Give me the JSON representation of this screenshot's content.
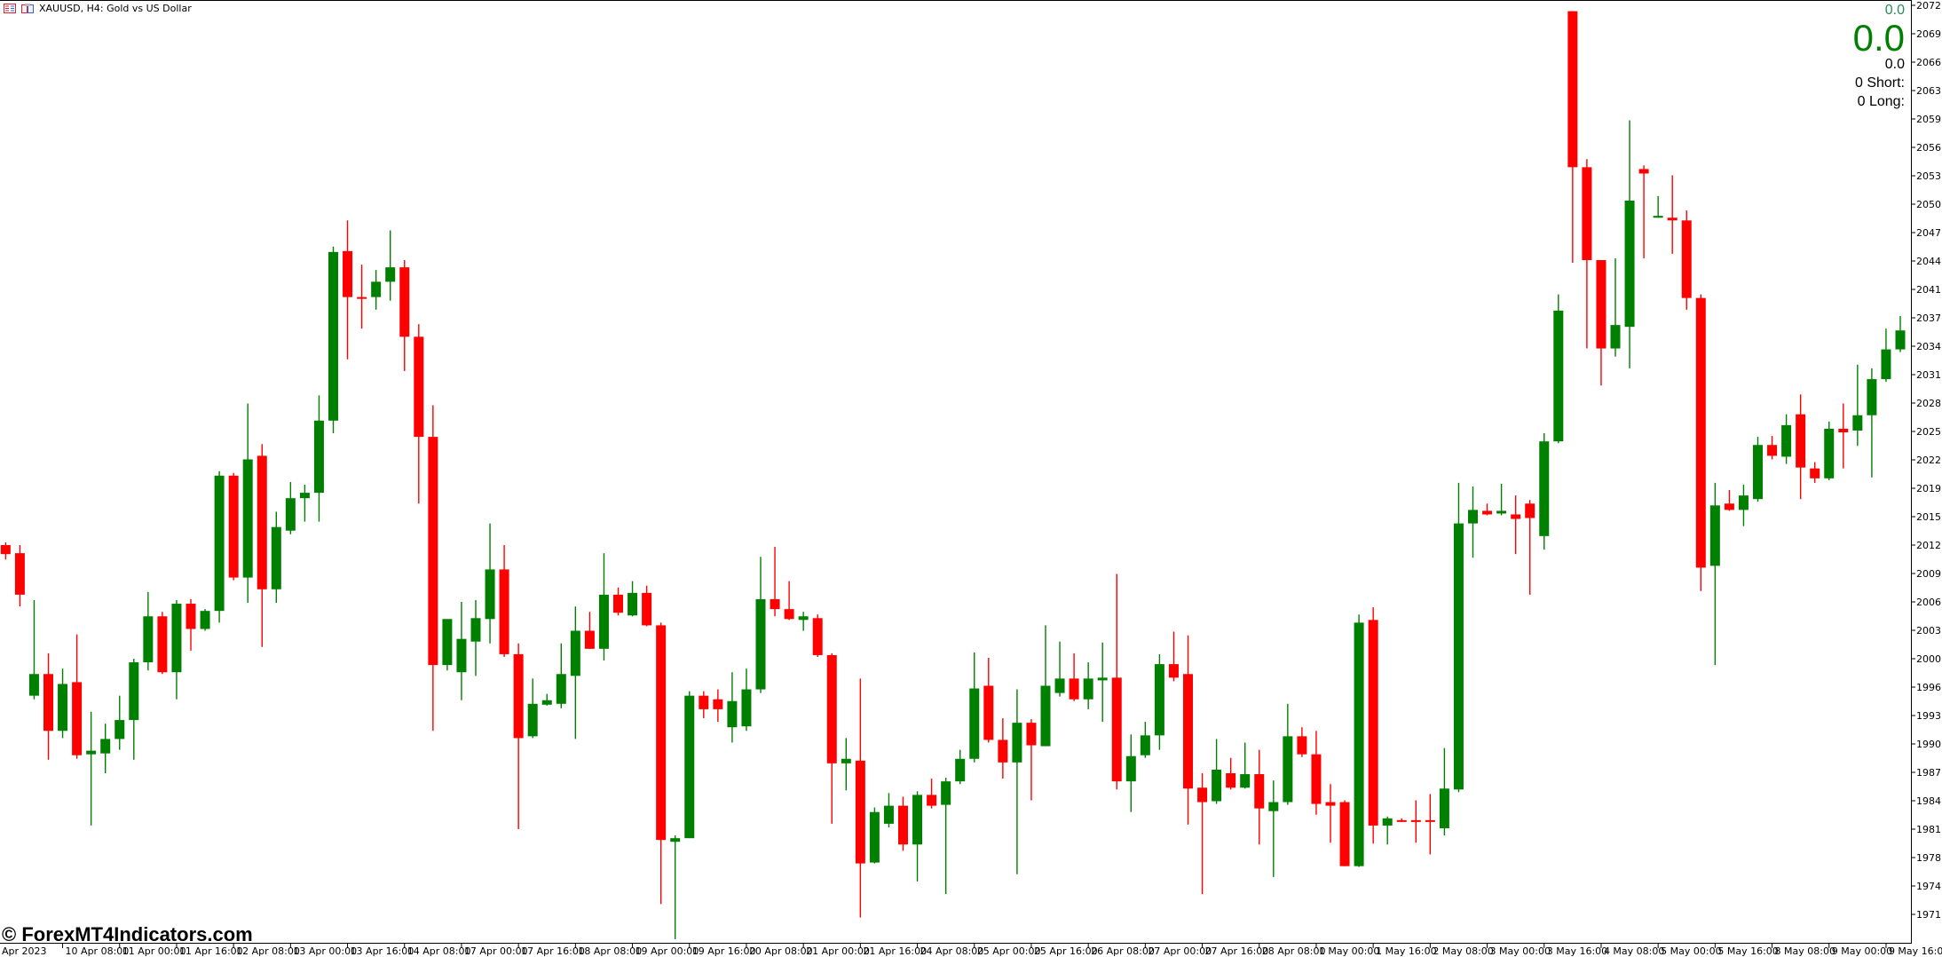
{
  "header": {
    "symbol_title": "XAUUSD, H4:  Gold vs US Dollar",
    "icons": [
      "chart-list-icon",
      "chart-window-icon"
    ]
  },
  "readout": {
    "top_value": "0.0",
    "main_value": "0.0",
    "sub_value": "0.0",
    "short_label": "0  Short:",
    "long_label": "0  Long:"
  },
  "watermark": "© ForexMT4Indicators.com",
  "colors": {
    "bull": "#008000",
    "bear": "#ff0000",
    "readout_green": "#008000",
    "background": "#ffffff"
  },
  "chart_data": {
    "type": "candlestick",
    "symbol": "XAUUSD",
    "timeframe": "H4",
    "ylim": [
      1968.6,
      2073.1
    ],
    "grid": false,
    "price_ticks": [
      "2072.55",
      "2069.40",
      "2066.25",
      "2063.10",
      "2059.95",
      "2056.80",
      "2053.65",
      "2050.50",
      "2047.35",
      "2044.20",
      "2041.05",
      "2037.90",
      "2034.75",
      "2031.60",
      "2028.45",
      "2025.30",
      "2022.15",
      "2019.00",
      "2015.85",
      "2012.70",
      "2009.55",
      "2006.40",
      "2003.25",
      "2000.10",
      "1996.95",
      "1993.80",
      "1990.65",
      "1987.50",
      "1984.35",
      "1981.20",
      "1978.05",
      "1974.90",
      "1971.75"
    ],
    "time_ticks": [
      "Apr 2023",
      "10 Apr 08:00",
      "11 Apr 00:00",
      "11 Apr 16:00",
      "12 Apr 08:00",
      "13 Apr 00:00",
      "13 Apr 16:00",
      "14 Apr 08:00",
      "17 Apr 00:00",
      "17 Apr 16:00",
      "18 Apr 08:00",
      "19 Apr 00:00",
      "19 Apr 16:00",
      "20 Apr 08:00",
      "21 Apr 00:00",
      "21 Apr 16:00",
      "24 Apr 08:00",
      "25 Apr 00:00",
      "25 Apr 16:00",
      "26 Apr 08:00",
      "27 Apr 00:00",
      "27 Apr 16:00",
      "28 Apr 08:00",
      "1 May 00:00",
      "1 May 16:00",
      "2 May 08:00",
      "3 May 00:00",
      "3 May 16:00",
      "4 May 08:00",
      "5 May 00:00",
      "5 May 16:00",
      "8 May 08:00",
      "9 May 00:00",
      "9 May 16:00"
    ],
    "bars_per_time_tick": 4,
    "ohlc": [
      [
        2012.7,
        2013.0,
        2011.1,
        2011.7
      ],
      [
        2011.8,
        2012.7,
        2005.9,
        2007.2
      ],
      [
        1996.0,
        2006.6,
        1995.6,
        1998.4
      ],
      [
        1998.4,
        2000.7,
        1988.9,
        1992.1
      ],
      [
        1992.1,
        1999.0,
        1991.3,
        1997.3
      ],
      [
        1997.5,
        2002.8,
        1989.0,
        1989.4
      ],
      [
        1989.5,
        1994.2,
        1981.6,
        1989.9
      ],
      [
        1989.6,
        1992.9,
        1987.4,
        1991.2
      ],
      [
        1991.2,
        1996.0,
        1990.0,
        1993.3
      ],
      [
        1993.3,
        2000.1,
        1988.9,
        1999.7
      ],
      [
        1999.7,
        2007.5,
        1998.8,
        2004.8
      ],
      [
        2004.8,
        2005.3,
        1998.4,
        1998.6
      ],
      [
        1998.6,
        2006.6,
        1995.6,
        2006.2
      ],
      [
        2006.2,
        2006.7,
        2001.0,
        2003.4
      ],
      [
        2003.4,
        2005.6,
        2003.2,
        2005.4
      ],
      [
        2005.4,
        2020.9,
        2004.1,
        2020.4
      ],
      [
        2020.4,
        2020.7,
        2008.8,
        2009.1
      ],
      [
        2009.1,
        2028.4,
        2006.3,
        2022.2
      ],
      [
        2022.6,
        2023.9,
        2001.4,
        2007.8
      ],
      [
        2007.8,
        2016.4,
        2006.3,
        2014.7
      ],
      [
        2014.3,
        2019.7,
        2013.9,
        2017.9
      ],
      [
        2017.9,
        2019.4,
        2015.3,
        2018.5
      ],
      [
        2018.5,
        2029.3,
        2015.3,
        2026.5
      ],
      [
        2026.5,
        2045.8,
        2025.1,
        2045.2
      ],
      [
        2045.3,
        2048.7,
        2033.3,
        2040.2
      ],
      [
        2040.2,
        2043.8,
        2036.7,
        2040.1
      ],
      [
        2040.2,
        2043.2,
        2038.8,
        2041.9
      ],
      [
        2041.9,
        2047.6,
        2039.8,
        2043.5
      ],
      [
        2043.5,
        2044.3,
        2032.0,
        2035.8
      ],
      [
        2035.8,
        2037.2,
        2017.3,
        2024.7
      ],
      [
        2024.7,
        2028.2,
        1992.1,
        1999.4
      ],
      [
        1999.4,
        2004.5,
        1998.8,
        2004.5
      ],
      [
        1998.6,
        2006.4,
        1995.5,
        2002.3
      ],
      [
        2002.0,
        2006.6,
        1998.2,
        2004.6
      ],
      [
        2004.5,
        2015.1,
        2001.8,
        2010.0
      ],
      [
        2010.0,
        2012.7,
        2000.3,
        2000.6
      ],
      [
        2000.6,
        2001.8,
        1981.2,
        1991.3
      ],
      [
        1991.5,
        1997.9,
        1991.3,
        1995.1
      ],
      [
        1995.0,
        1996.2,
        1994.9,
        1995.5
      ],
      [
        1995.1,
        2001.8,
        1994.6,
        1998.4
      ],
      [
        1998.2,
        2005.9,
        1991.2,
        2003.2
      ],
      [
        2003.2,
        2005.3,
        2001.2,
        2001.2
      ],
      [
        2001.2,
        2011.8,
        1999.9,
        2007.2
      ],
      [
        2007.2,
        2008.0,
        2004.9,
        2005.2
      ],
      [
        2004.9,
        2008.7,
        2004.8,
        2007.4
      ],
      [
        2007.4,
        2008.2,
        2003.7,
        2003.8
      ],
      [
        2003.8,
        2004.1,
        1972.9,
        1980.0
      ],
      [
        1979.8,
        1980.5,
        1969.0,
        1980.2
      ],
      [
        1980.2,
        1996.5,
        1980.2,
        1996.0
      ],
      [
        1996.0,
        1996.5,
        1993.5,
        1994.5
      ],
      [
        1995.6,
        1996.7,
        1993.1,
        1994.5
      ],
      [
        1992.5,
        1998.6,
        1990.8,
        1995.4
      ],
      [
        1992.6,
        1999.0,
        1992.1,
        1996.7
      ],
      [
        1996.7,
        2011.4,
        1996.3,
        2006.7
      ],
      [
        2006.7,
        2012.5,
        2004.8,
        2005.6
      ],
      [
        2005.6,
        2008.7,
        2004.4,
        2004.5
      ],
      [
        2004.4,
        2005.3,
        2003.2,
        2004.8
      ],
      [
        2004.6,
        2005.0,
        2000.3,
        2000.5
      ],
      [
        2000.5,
        2000.7,
        1981.8,
        1988.5
      ],
      [
        1988.5,
        1991.3,
        1985.5,
        1989.0
      ],
      [
        1988.8,
        1997.9,
        1971.4,
        1977.4
      ],
      [
        1977.5,
        1983.6,
        1977.4,
        1983.1
      ],
      [
        1981.8,
        1985.2,
        1981.4,
        1983.8
      ],
      [
        1983.8,
        1984.8,
        1978.8,
        1979.5
      ],
      [
        1979.5,
        1985.4,
        1975.4,
        1985.0
      ],
      [
        1985.0,
        1986.8,
        1983.5,
        1983.8
      ],
      [
        1983.9,
        1986.9,
        1974.0,
        1986.5
      ],
      [
        1986.5,
        1990.0,
        1986.2,
        1989.0
      ],
      [
        1989.0,
        2000.8,
        1988.6,
        1996.8
      ],
      [
        1997.1,
        2000.2,
        1990.8,
        1991.1
      ],
      [
        1991.1,
        1993.5,
        1986.8,
        1988.6
      ],
      [
        1988.6,
        1996.7,
        1976.2,
        1993.0
      ],
      [
        1993.0,
        1993.4,
        1984.4,
        1990.5
      ],
      [
        1990.4,
        2003.8,
        1990.4,
        1997.1
      ],
      [
        1996.3,
        2002.0,
        1995.9,
        1997.9
      ],
      [
        1997.9,
        2000.7,
        1995.4,
        1995.6
      ],
      [
        1995.6,
        1999.7,
        1994.5,
        1997.9
      ],
      [
        1997.7,
        2001.9,
        1993.1,
        1998.0
      ],
      [
        1998.0,
        2009.5,
        1985.6,
        1986.5
      ],
      [
        1986.5,
        1991.7,
        1983.1,
        1989.3
      ],
      [
        1989.4,
        1993.1,
        1989.1,
        1991.6
      ],
      [
        1991.6,
        2000.6,
        1990.0,
        1999.5
      ],
      [
        1999.5,
        2003.1,
        1997.6,
        1998.0
      ],
      [
        1998.4,
        2002.7,
        1981.7,
        1985.7
      ],
      [
        1985.8,
        1987.4,
        1974.0,
        1984.2
      ],
      [
        1984.3,
        1991.2,
        1984.0,
        1987.8
      ],
      [
        1987.4,
        1989.1,
        1985.6,
        1985.8
      ],
      [
        1985.8,
        1990.8,
        1985.7,
        1987.3
      ],
      [
        1987.3,
        1990.0,
        1979.5,
        1983.5
      ],
      [
        1983.2,
        1986.6,
        1975.9,
        1984.2
      ],
      [
        1984.2,
        1995.1,
        1983.9,
        1991.5
      ],
      [
        1991.5,
        1992.5,
        1989.2,
        1989.5
      ],
      [
        1989.5,
        1992.1,
        1982.8,
        1984.0
      ],
      [
        1984.2,
        1986.2,
        1979.7,
        1983.8
      ],
      [
        1984.2,
        1984.4,
        1977.1,
        1977.1
      ],
      [
        1977.1,
        2005.0,
        1977.0,
        2004.1
      ],
      [
        2004.4,
        2005.8,
        1979.6,
        1981.6
      ],
      [
        1981.6,
        1982.6,
        1979.5,
        1982.4
      ],
      [
        1982.2,
        1982.4,
        1982.0,
        1982.1
      ],
      [
        1982.2,
        1984.4,
        1979.7,
        1982.0
      ],
      [
        1982.2,
        1985.1,
        1978.4,
        1982.1
      ],
      [
        1981.3,
        1990.2,
        1980.5,
        1985.7
      ],
      [
        1985.6,
        2019.6,
        1985.3,
        2015.1
      ],
      [
        2015.1,
        2019.2,
        2011.3,
        2016.6
      ],
      [
        2016.5,
        2017.3,
        2016.0,
        2016.1
      ],
      [
        2016.2,
        2019.5,
        2016.0,
        2016.5
      ],
      [
        2016.1,
        2018.2,
        2011.7,
        2015.6
      ],
      [
        2017.3,
        2017.7,
        2007.2,
        2015.7
      ],
      [
        2013.7,
        2025.1,
        2012.2,
        2024.2
      ],
      [
        2024.2,
        2040.5,
        2024.0,
        2038.7
      ],
      [
        2071.9,
        2071.9,
        2044.0,
        2054.6
      ],
      [
        2054.6,
        2055.5,
        2034.5,
        2044.3
      ],
      [
        2044.3,
        2044.3,
        2030.4,
        2034.5
      ],
      [
        2034.5,
        2044.5,
        2033.6,
        2037.1
      ],
      [
        2036.9,
        2059.8,
        2032.3,
        2050.9
      ],
      [
        2054.4,
        2054.8,
        2044.5,
        2053.9
      ],
      [
        2049.0,
        2051.4,
        2049.0,
        2049.2
      ],
      [
        2049.0,
        2053.7,
        2045.0,
        2048.7
      ],
      [
        2048.7,
        2049.8,
        2038.8,
        2040.1
      ],
      [
        2040.1,
        2040.5,
        2007.6,
        2010.2
      ],
      [
        2010.4,
        2019.6,
        1999.4,
        2017.1
      ],
      [
        2017.3,
        2018.8,
        2016.5,
        2016.6
      ],
      [
        2016.6,
        2019.4,
        2014.8,
        2018.2
      ],
      [
        2017.8,
        2024.7,
        2017.5,
        2023.8
      ],
      [
        2023.8,
        2024.8,
        2022.2,
        2022.6
      ],
      [
        2022.5,
        2027.2,
        2021.7,
        2026.0
      ],
      [
        2027.2,
        2029.4,
        2017.8,
        2021.3
      ],
      [
        2021.2,
        2021.9,
        2019.6,
        2020.1
      ],
      [
        2020.1,
        2026.4,
        2019.9,
        2025.6
      ],
      [
        2025.6,
        2028.4,
        2021.2,
        2025.2
      ],
      [
        2025.4,
        2032.7,
        2023.7,
        2027.1
      ],
      [
        2027.1,
        2032.3,
        2020.2,
        2031.1
      ],
      [
        2031.1,
        2036.7,
        2030.8,
        2034.4
      ],
      [
        2034.4,
        2038.1,
        2034.1,
        2036.5
      ]
    ]
  }
}
